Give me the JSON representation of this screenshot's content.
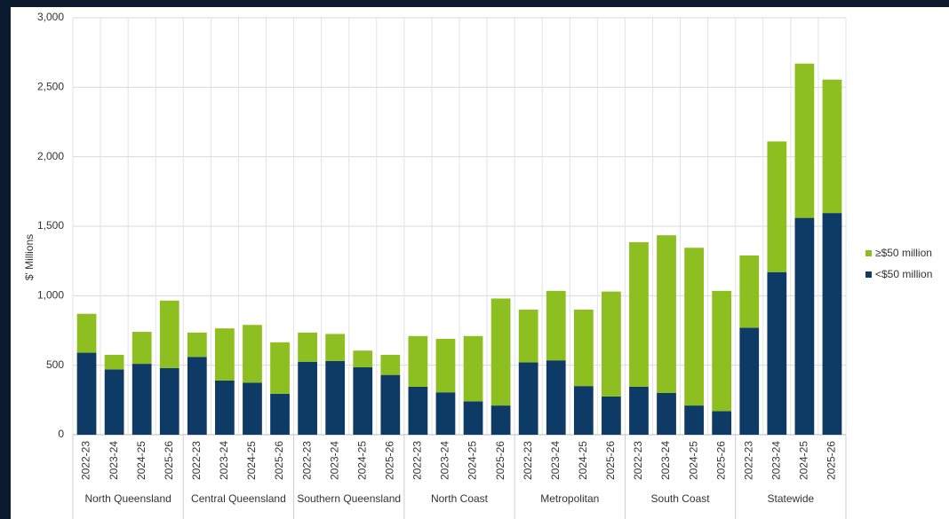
{
  "chart_data": {
    "type": "stacked_bar",
    "y_label": "$' Millions",
    "categories": [
      "2022-23",
      "2023-24",
      "2024-25",
      "2025-26",
      "2022-23",
      "2023-24",
      "2024-25",
      "2025-26",
      "2022-23",
      "2023-24",
      "2024-25",
      "2025-26",
      "2022-23",
      "2023-24",
      "2024-25",
      "2025-26",
      "2022-23",
      "2023-24",
      "2024-25",
      "2025-26",
      "2022-23",
      "2023-24",
      "2024-25",
      "2025-26",
      "2022-23",
      "2023-24",
      "2024-25",
      "2025-26"
    ],
    "groups": [
      "North Queensland",
      "Central Queensland",
      "Southern Queensland",
      "North Coast",
      "Metropolitan",
      "South Coast",
      "Statewide"
    ],
    "series": [
      {
        "name": "<$50 million",
        "color": "#0e3a66",
        "values": [
          590,
          470,
          510,
          480,
          560,
          390,
          375,
          295,
          525,
          530,
          485,
          430,
          345,
          305,
          240,
          210,
          520,
          535,
          350,
          275,
          345,
          300,
          210,
          170,
          770,
          1170,
          1560,
          1595
        ]
      },
      {
        "name": "≥$50 million",
        "color": "#8cbf1f",
        "values": [
          280,
          105,
          230,
          485,
          175,
          375,
          415,
          370,
          210,
          195,
          120,
          145,
          365,
          385,
          470,
          770,
          380,
          500,
          550,
          755,
          1040,
          1135,
          1135,
          865,
          520,
          940,
          1110,
          960
        ]
      }
    ],
    "ylim": [
      0,
      3000
    ],
    "yticks": [
      0,
      500,
      {
        "value": 1000,
        "label": "1,000"
      },
      {
        "value": 1500,
        "label": "1,500"
      },
      {
        "value": 2000,
        "label": "2,000"
      },
      {
        "value": 2500,
        "label": "2,500"
      },
      {
        "value": 3000,
        "label": "3,000"
      }
    ],
    "grid": true
  }
}
